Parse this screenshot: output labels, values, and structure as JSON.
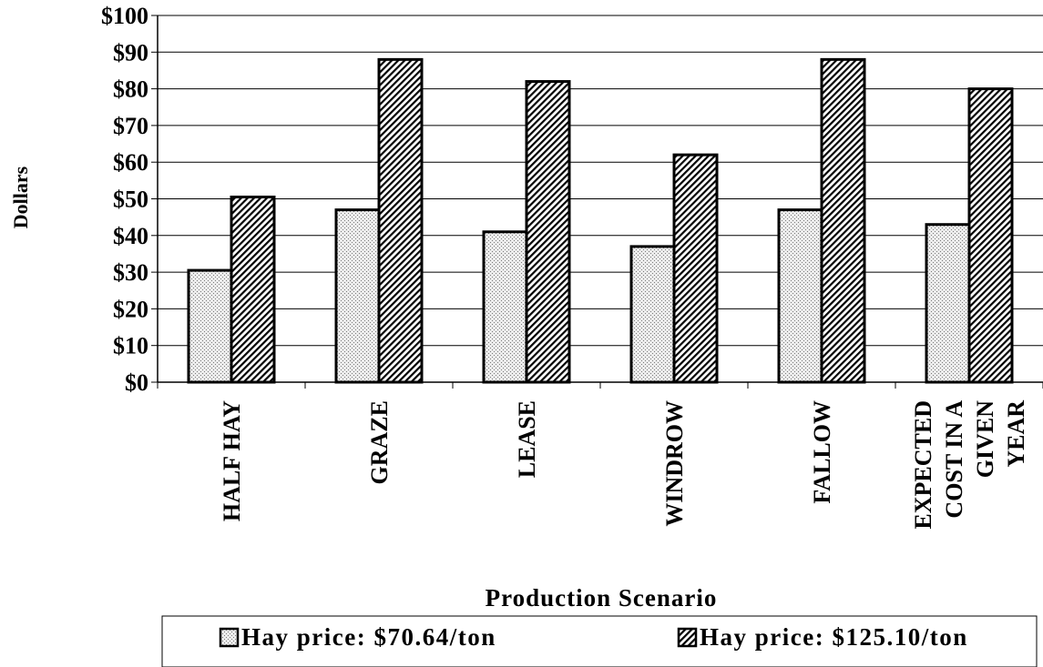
{
  "chart_data": {
    "type": "bar",
    "title": "",
    "xlabel": "Production Scenario",
    "ylabel": "Dollars",
    "ylim": [
      0,
      100
    ],
    "yticks": [
      0,
      10,
      20,
      30,
      40,
      50,
      60,
      70,
      80,
      90,
      100
    ],
    "ytick_labels": [
      "$0",
      "$10",
      "$20",
      "$30",
      "$40",
      "$50",
      "$60",
      "$70",
      "$80",
      "$90",
      "$100"
    ],
    "categories": [
      "HALF HAY",
      "GRAZE",
      "LEASE",
      "WINDROW",
      "FALLOW",
      "EXPECTED COST IN A GIVEN YEAR"
    ],
    "category_lines": [
      [
        "HALF HAY"
      ],
      [
        "GRAZE"
      ],
      [
        "LEASE"
      ],
      [
        "WINDROW"
      ],
      [
        "FALLOW"
      ],
      [
        "EXPECTED",
        "COST IN A",
        "GIVEN",
        "YEAR"
      ]
    ],
    "series": [
      {
        "name": "Hay price: $70.64/ton",
        "values": [
          30.5,
          47,
          41,
          37,
          47,
          43
        ],
        "pattern": "dots"
      },
      {
        "name": "Hay price: $125.10/ton",
        "values": [
          50.5,
          88,
          82,
          62,
          88,
          80
        ],
        "pattern": "hatch"
      }
    ],
    "grid": true,
    "legend_position": "bottom"
  }
}
